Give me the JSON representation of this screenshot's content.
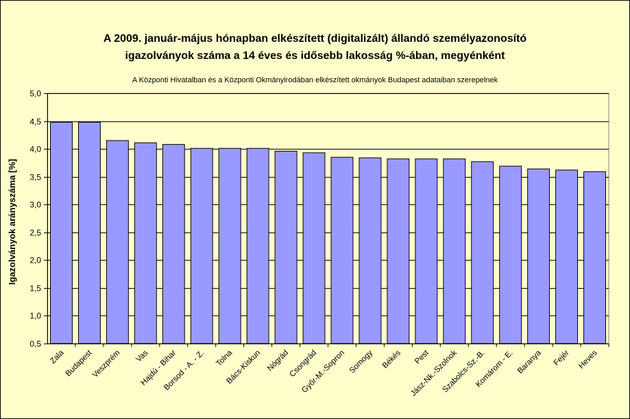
{
  "chart_data": {
    "type": "bar",
    "title_line1": "A 2009. január-május hónapban elkészített (digitalizált) állandó személyazonosító",
    "title_line2": "igazolványok száma a 14 éves és idősebb lakosság %-ában, megyénként",
    "subtitle": "A Központi Hivatalban és a Központi Okmányirodában elkészített  okmányok Budapest adataiban szerepelnek",
    "xlabel": "",
    "ylabel": "Igazolványok arányszáma [%]",
    "ylim": [
      0.5,
      5.0
    ],
    "yticks": [
      "0,5",
      "1,0",
      "1,5",
      "2,0",
      "2,5",
      "3,0",
      "3,5",
      "4,0",
      "4,5",
      "5,0"
    ],
    "grid": true,
    "categories": [
      "Zala",
      "Budapest",
      "Veszprém",
      "Vas",
      "Hajdú - Bihar",
      "Borsod - A. - Z.",
      "Tolna",
      "Bács-Kiskun",
      "Nógrád",
      "Csongrád",
      "Győr-M.-Sopron",
      "Somogy",
      "Békés",
      "Pest",
      "Jász-Nk.-Szolnok",
      "Szabolcs-Sz.-B.",
      "Komárom - E.",
      "Baranya",
      "Fejér",
      "Heves"
    ],
    "values": [
      4.48,
      4.48,
      4.15,
      4.11,
      4.08,
      4.01,
      4.01,
      4.01,
      3.96,
      3.93,
      3.85,
      3.84,
      3.82,
      3.82,
      3.82,
      3.77,
      3.69,
      3.64,
      3.62,
      3.59
    ],
    "colors": {
      "background": "#ffffcc",
      "plot_area": "#ffffcc",
      "bar": "#9999ff",
      "bar_border": "#000000",
      "grid": "#000000"
    }
  }
}
